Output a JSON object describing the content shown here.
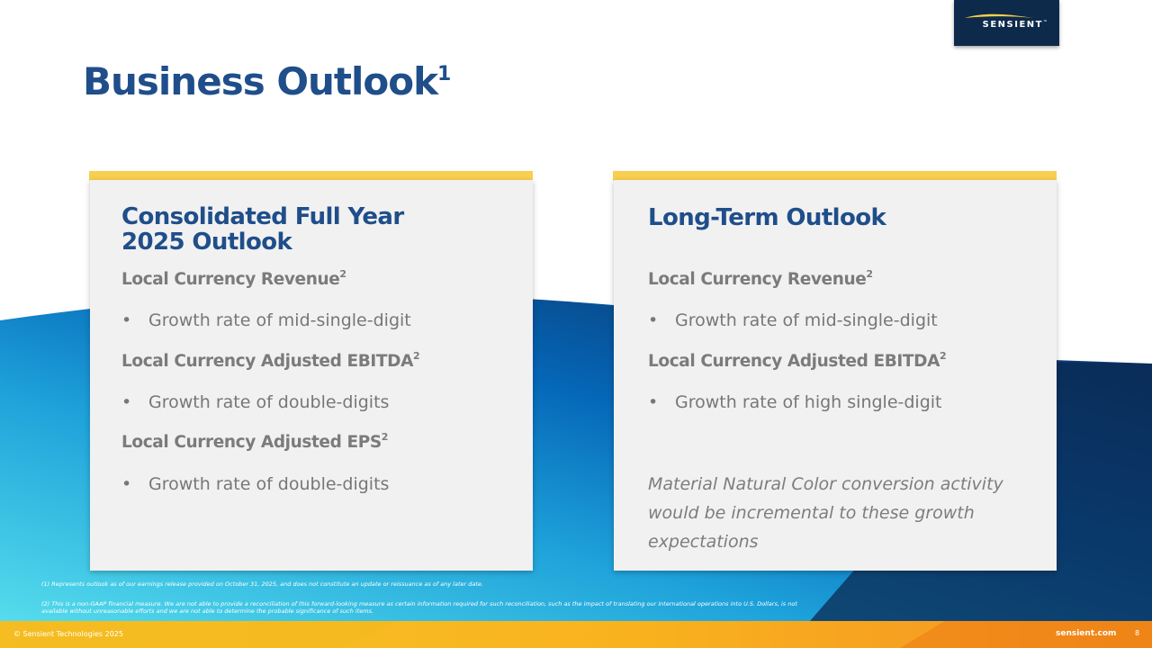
{
  "logo": {
    "text": "SENSIENT",
    "tm": "™"
  },
  "title": {
    "text": "Business Outlook",
    "sup": "1"
  },
  "cards": [
    {
      "title_line1": "Consolidated Full Year",
      "title_line2": "2025 Outlook",
      "sections": [
        {
          "heading": "Local Currency Revenue",
          "sup": "2",
          "bullet": "Growth rate of mid-single-digit"
        },
        {
          "heading": "Local Currency Adjusted EBITDA",
          "sup": "2",
          "bullet": "Growth rate of double-digits"
        },
        {
          "heading": "Local Currency Adjusted EPS",
          "sup": "2",
          "bullet": "Growth rate of double-digits"
        }
      ]
    },
    {
      "title_line1": "Long-Term Outlook",
      "sections": [
        {
          "heading": "Local Currency Revenue",
          "sup": "2",
          "bullet": "Growth rate of mid-single-digit"
        },
        {
          "heading": "Local Currency Adjusted EBITDA",
          "sup": "2",
          "bullet": "Growth rate of high single-digit"
        }
      ],
      "note": "Material Natural Color conversion activity would be incremental to these growth expectations"
    }
  ],
  "bullet_char": "•",
  "footnotes": [
    "(1) Represents outlook as of our earnings release provided on October 31, 2025, and does not constitute an update or reissuance as of any later date.",
    "(2) This is a non-GAAP financial measure. We are not able to provide a reconciliation of this forward-looking measure as certain information required for such reconciliation, such as the impact of translating our international operations into U.S. Dollars, is not available without unreasonable efforts and we are not able to determine the probable significance of such items."
  ],
  "footer": {
    "copyright": "© Sensient Technologies 2025",
    "site": "sensient.com",
    "page": "8"
  },
  "colors": {
    "title_blue": "#1f4e8a",
    "accent_yellow": "#f8cf4e",
    "navy": "#0e2a4a",
    "card_bg": "#f1f1f1"
  }
}
